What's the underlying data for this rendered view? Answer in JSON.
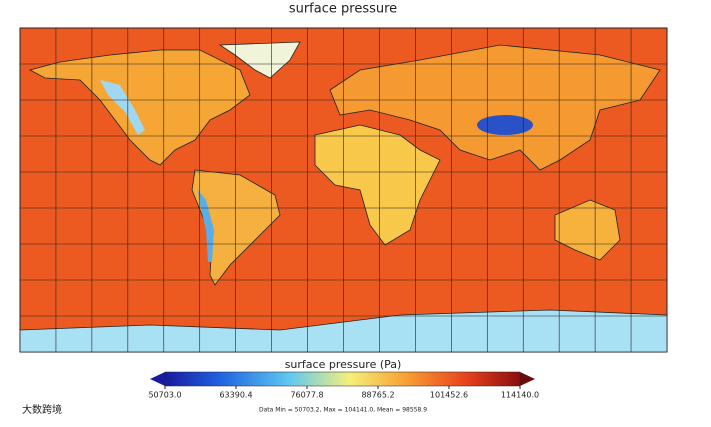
{
  "title": "surface pressure",
  "colorbar": {
    "label": "surface pressure (Pa)",
    "lim": [
      50703,
      114140
    ],
    "ticks": [
      {
        "value": 50703,
        "label": "50703.0"
      },
      {
        "value": 63390.4,
        "label": "63390.4"
      },
      {
        "value": 76077.8,
        "label": "76077.8"
      },
      {
        "value": 88765.2,
        "label": "88765.2"
      },
      {
        "value": 101452.6,
        "label": "101452.6"
      },
      {
        "value": 114140,
        "label": "114140.0"
      }
    ]
  },
  "stats": "Data Min = 50703.2, Max = 104141.0, Mean = 98558.9",
  "watermark": "大数跨境"
}
